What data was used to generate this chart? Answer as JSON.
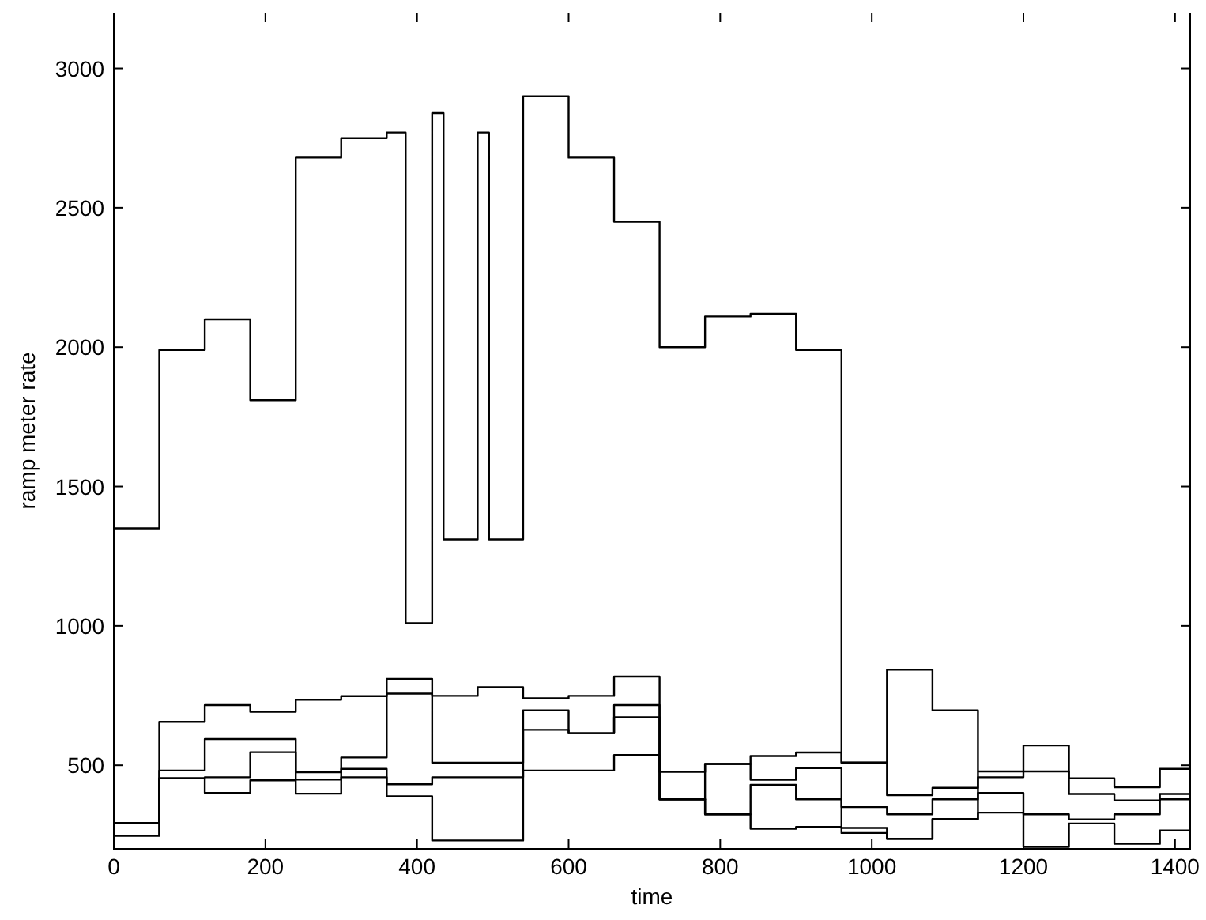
{
  "chart_data": {
    "type": "step",
    "xlabel": "time",
    "ylabel": "ramp meter rate",
    "xlim": [
      0,
      1420
    ],
    "ylim": [
      200,
      3200
    ],
    "xticks": [
      0,
      200,
      400,
      600,
      800,
      1000,
      1200,
      1400
    ],
    "yticks": [
      500,
      1000,
      1500,
      2000,
      2500,
      3000
    ],
    "grid": false,
    "line_style": "solid",
    "marker": "none",
    "series": [
      {
        "color": "#000000",
        "x": [
          0,
          60,
          120,
          180,
          240,
          300,
          360,
          385,
          420,
          435,
          480,
          495,
          540,
          600,
          660,
          720,
          780,
          840,
          900,
          960,
          1020,
          1080,
          1140
        ],
        "values": [
          1350,
          1990,
          2100,
          1810,
          2680,
          2750,
          2770,
          1010,
          2840,
          1310,
          2770,
          1310,
          2900,
          2680,
          2450,
          2000,
          2110,
          2120,
          1990,
          510,
          843,
          697,
          478
        ]
      },
      {
        "color": "#000000",
        "x": [
          0,
          60,
          120,
          180,
          240,
          300,
          360,
          420,
          480,
          540,
          600,
          660,
          720,
          780,
          840,
          900,
          960,
          1020,
          1080,
          1140,
          1200,
          1260,
          1320,
          1380,
          1420
        ],
        "values": [
          293,
          656,
          716,
          692,
          735,
          748,
          810,
          749,
          780,
          740,
          749,
          818,
          476,
          505,
          533,
          546,
          509,
          393,
          419,
          478,
          571,
          453,
          421,
          487,
          487
        ]
      },
      {
        "color": "#000000",
        "x": [
          0,
          60,
          120,
          180,
          240,
          300,
          360,
          420,
          480,
          540,
          600,
          660,
          720,
          780,
          840,
          900,
          960,
          1020,
          1080,
          1140,
          1200,
          1260,
          1320,
          1380,
          1420
        ],
        "values": [
          293,
          481,
          594,
          594,
          475,
          528,
          757,
          509,
          509,
          697,
          615,
          716,
          378,
          505,
          448,
          490,
          350,
          324,
          378,
          457,
          478,
          397,
          374,
          397,
          397
        ]
      },
      {
        "color": "#000000",
        "x": [
          0,
          60,
          120,
          180,
          240,
          300,
          360,
          420,
          480,
          540,
          600,
          660,
          720,
          780,
          840,
          900,
          960,
          1020,
          1080,
          1140,
          1200,
          1260,
          1320,
          1380,
          1420
        ],
        "values": [
          247,
          453,
          457,
          547,
          449,
          487,
          432,
          457,
          457,
          627,
          615,
          672,
          378,
          324,
          430,
          378,
          275,
          236,
          307,
          401,
          324,
          306,
          324,
          378,
          378
        ]
      },
      {
        "color": "#000000",
        "x": [
          0,
          60,
          120,
          180,
          240,
          300,
          360,
          420,
          480,
          540,
          600,
          660,
          720,
          780,
          840,
          900,
          960,
          1020,
          1080,
          1140,
          1200,
          1260,
          1320,
          1380,
          1420
        ],
        "values": [
          247,
          453,
          401,
          446,
          398,
          457,
          389,
          230,
          230,
          481,
          481,
          537,
          378,
          324,
          272,
          279,
          257,
          236,
          307,
          330,
          207,
          291,
          218,
          266,
          266
        ]
      }
    ]
  }
}
